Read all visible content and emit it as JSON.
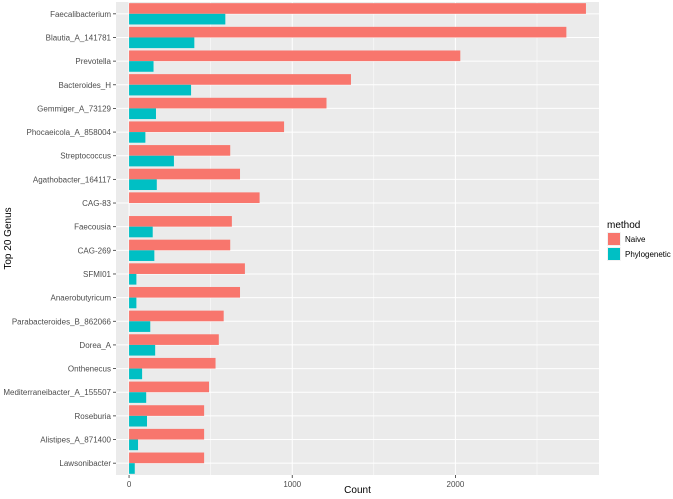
{
  "chart_data": {
    "type": "bar",
    "orientation": "horizontal",
    "xlabel": "Count",
    "ylabel": "Top 20 Genus",
    "xlim": [
      -80,
      2880
    ],
    "xticks": [
      0,
      1000,
      2000
    ],
    "grid": true,
    "legend_position": "right",
    "legend_title": "method",
    "categories": [
      "Faecalibacterium",
      "Blautia_A_141781",
      "Prevotella",
      "Bacteroides_H",
      "Gemmiger_A_73129",
      "Phocaeicola_A_858004",
      "Streptococcus",
      "Agathobacter_164117",
      "CAG-83",
      "Faecousia",
      "CAG-269",
      "SFMI01",
      "Anaerobutyricum",
      "Parabacteroides_B_862066",
      "Dorea_A",
      "Onthenecus",
      "Mediterraneibacter_A_155507",
      "Roseburia",
      "Alistipes_A_871400",
      "Lawsonibacter"
    ],
    "series": [
      {
        "name": "Naive",
        "color": "#F8766D",
        "values": [
          2800,
          2680,
          2030,
          1360,
          1210,
          950,
          620,
          680,
          800,
          630,
          620,
          710,
          680,
          580,
          550,
          530,
          490,
          460,
          460,
          460
        ]
      },
      {
        "name": "Phylogenetic",
        "color": "#00BFC4",
        "values": [
          590,
          400,
          150,
          380,
          165,
          100,
          275,
          170,
          0,
          145,
          155,
          45,
          45,
          130,
          160,
          80,
          105,
          110,
          55,
          35
        ]
      }
    ]
  }
}
